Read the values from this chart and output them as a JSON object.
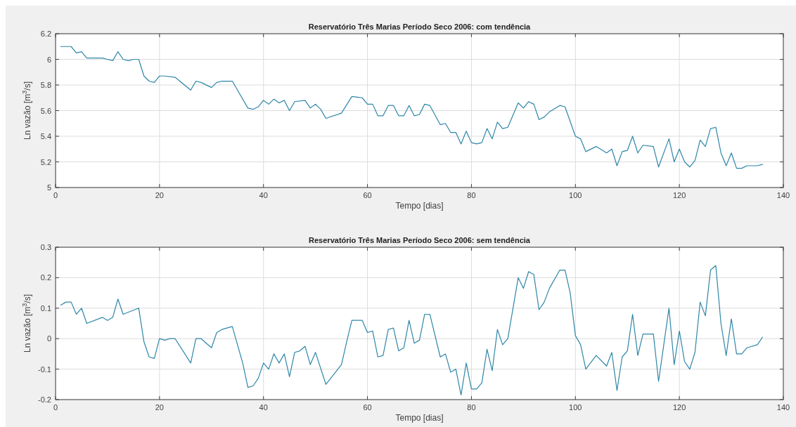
{
  "chart_data": [
    {
      "type": "line",
      "title": "Reservatório Três Marias Período Seco 2006: com tendência",
      "xlabel": "Tempo [dias]",
      "ylabel": "Ln vazão [m$^{3}$/s]",
      "xlim": [
        0,
        140
      ],
      "xticks": [
        0,
        20,
        40,
        60,
        80,
        100,
        120,
        140
      ],
      "ylim": [
        5,
        6.2
      ],
      "yticks": [
        5,
        5.2,
        5.4,
        5.6,
        5.8,
        6,
        6.2
      ],
      "grid": true,
      "series": [
        {
          "color": "#2e86a8",
          "x": [
            1,
            3,
            4,
            5,
            6,
            9,
            10,
            11,
            12,
            13,
            14,
            15,
            16,
            17,
            18,
            19,
            20,
            21,
            23,
            26,
            27,
            28,
            30,
            31,
            32,
            34,
            37,
            38,
            39,
            40,
            41,
            42,
            43,
            44,
            45,
            46,
            48,
            49,
            50,
            51,
            52,
            55,
            57,
            59,
            60,
            61,
            62,
            63,
            64,
            65,
            66,
            67,
            68,
            69,
            70,
            71,
            72,
            74,
            75,
            76,
            77,
            78,
            79,
            80,
            81,
            82,
            83,
            84,
            85,
            86,
            87,
            89,
            90,
            91,
            92,
            93,
            94,
            95,
            97,
            98,
            100,
            101,
            102,
            104,
            106,
            107,
            108,
            109,
            110,
            111,
            112,
            113,
            115,
            116,
            118,
            119,
            120,
            121,
            122,
            123,
            124,
            125,
            126,
            127,
            128,
            129,
            130,
            131,
            132,
            133,
            135,
            136
          ],
          "values": [
            6.1,
            6.1,
            6.05,
            6.06,
            6.01,
            6.01,
            6.0,
            5.99,
            6.06,
            6.0,
            5.99,
            6.0,
            6.0,
            5.87,
            5.83,
            5.82,
            5.87,
            5.87,
            5.86,
            5.76,
            5.83,
            5.82,
            5.78,
            5.82,
            5.83,
            5.83,
            5.62,
            5.61,
            5.63,
            5.68,
            5.65,
            5.69,
            5.66,
            5.68,
            5.6,
            5.67,
            5.68,
            5.62,
            5.65,
            5.61,
            5.54,
            5.58,
            5.71,
            5.7,
            5.65,
            5.65,
            5.56,
            5.56,
            5.64,
            5.64,
            5.56,
            5.56,
            5.64,
            5.56,
            5.57,
            5.65,
            5.64,
            5.49,
            5.5,
            5.43,
            5.43,
            5.34,
            5.44,
            5.35,
            5.34,
            5.35,
            5.46,
            5.38,
            5.51,
            5.46,
            5.47,
            5.66,
            5.62,
            5.67,
            5.65,
            5.53,
            5.55,
            5.59,
            5.64,
            5.63,
            5.4,
            5.38,
            5.28,
            5.32,
            5.27,
            5.3,
            5.17,
            5.28,
            5.29,
            5.4,
            5.27,
            5.33,
            5.32,
            5.16,
            5.38,
            5.2,
            5.3,
            5.2,
            5.16,
            5.21,
            5.37,
            5.32,
            5.46,
            5.47,
            5.27,
            5.17,
            5.27,
            5.15,
            5.15,
            5.17,
            5.17,
            5.18
          ]
        }
      ]
    },
    {
      "type": "line",
      "title": "Reservatório Três Marias Período Seco 2006: sem tendência",
      "xlabel": "Tempo [dias]",
      "ylabel": "Ln vazão [m$^{3}$/s]",
      "xlim": [
        0,
        140
      ],
      "xticks": [
        0,
        20,
        40,
        60,
        80,
        100,
        120,
        140
      ],
      "ylim": [
        -0.2,
        0.3
      ],
      "yticks": [
        -0.2,
        -0.1,
        0,
        0.1,
        0.2,
        0.3
      ],
      "grid": true,
      "series": [
        {
          "color": "#2e86a8",
          "x": [
            1,
            2,
            3,
            4,
            5,
            6,
            9,
            10,
            11,
            12,
            13,
            16,
            17,
            18,
            19,
            20,
            21,
            22,
            23,
            26,
            27,
            28,
            30,
            31,
            32,
            34,
            36,
            37,
            38,
            39,
            40,
            41,
            42,
            43,
            44,
            45,
            46,
            47,
            48,
            49,
            50,
            52,
            55,
            56,
            57,
            59,
            60,
            61,
            62,
            63,
            64,
            65,
            66,
            67,
            68,
            69,
            70,
            71,
            72,
            74,
            75,
            76,
            77,
            78,
            79,
            80,
            81,
            82,
            83,
            84,
            85,
            86,
            87,
            89,
            90,
            91,
            92,
            93,
            94,
            95,
            97,
            98,
            99,
            100,
            101,
            102,
            104,
            106,
            107,
            108,
            109,
            110,
            111,
            112,
            113,
            115,
            116,
            118,
            119,
            120,
            121,
            122,
            123,
            124,
            125,
            126,
            127,
            128,
            129,
            130,
            131,
            132,
            133,
            135,
            136
          ],
          "values": [
            0.11,
            0.12,
            0.12,
            0.08,
            0.1,
            0.05,
            0.07,
            0.06,
            0.07,
            0.13,
            0.08,
            0.1,
            -0.01,
            -0.06,
            -0.065,
            0.0,
            -0.005,
            0.0,
            0.0,
            -0.08,
            0.0,
            0.0,
            -0.03,
            0.02,
            0.03,
            0.04,
            -0.08,
            -0.16,
            -0.155,
            -0.13,
            -0.08,
            -0.1,
            -0.05,
            -0.08,
            -0.05,
            -0.125,
            -0.045,
            -0.04,
            -0.025,
            -0.085,
            -0.045,
            -0.15,
            -0.085,
            -0.01,
            0.06,
            0.06,
            0.02,
            0.025,
            -0.06,
            -0.055,
            0.03,
            0.035,
            -0.04,
            -0.03,
            0.06,
            -0.015,
            -0.005,
            0.08,
            0.08,
            -0.06,
            -0.05,
            -0.11,
            -0.1,
            -0.185,
            -0.08,
            -0.165,
            -0.165,
            -0.145,
            -0.035,
            -0.105,
            0.03,
            -0.02,
            0.0,
            0.2,
            0.165,
            0.22,
            0.21,
            0.095,
            0.12,
            0.165,
            0.225,
            0.225,
            0.15,
            0.01,
            -0.02,
            -0.1,
            -0.055,
            -0.09,
            -0.045,
            -0.17,
            -0.06,
            -0.04,
            0.08,
            -0.055,
            0.015,
            0.015,
            -0.14,
            0.1,
            -0.085,
            0.025,
            -0.075,
            -0.1,
            -0.045,
            0.12,
            0.075,
            0.225,
            0.24,
            0.05,
            -0.055,
            0.065,
            -0.05,
            -0.05,
            -0.03,
            -0.02,
            0.005
          ]
        }
      ]
    }
  ]
}
